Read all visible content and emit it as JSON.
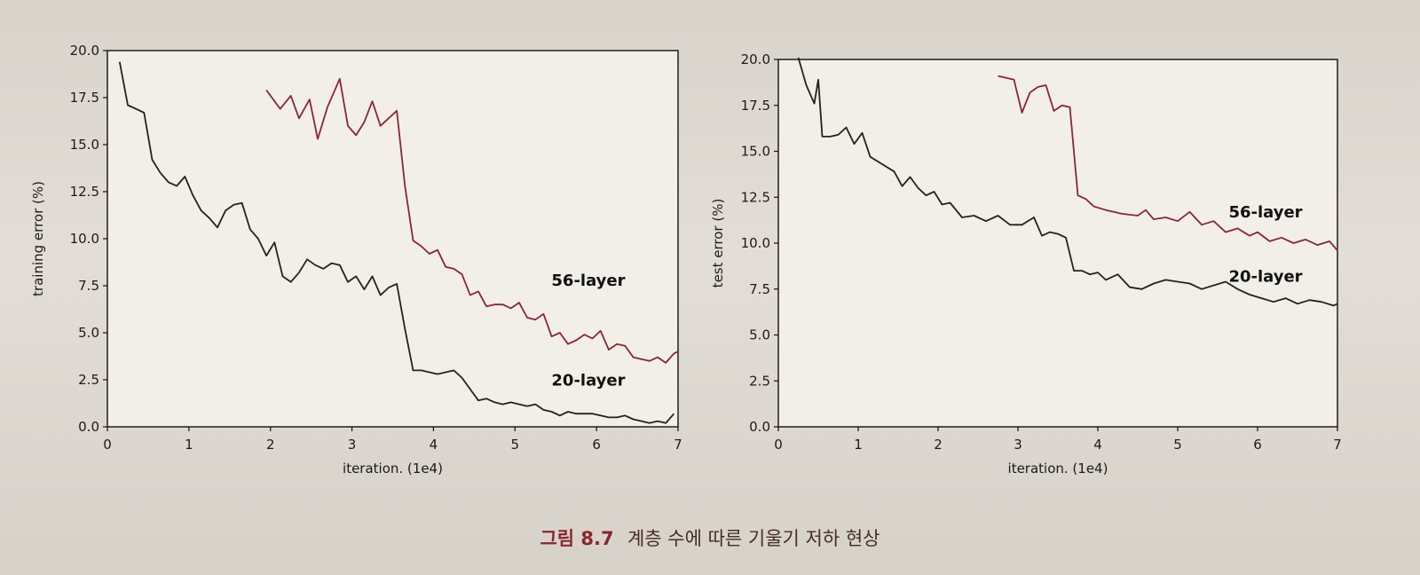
{
  "caption": {
    "figure_number": "그림 8.7",
    "text": "계층 수에 따른 기울기 저하 현상"
  },
  "colors": {
    "layer56": "#8b2630",
    "layer20": "#222222",
    "axis": "#111111"
  },
  "chart_data": [
    {
      "type": "line",
      "xlabel": "iteration. (1e4)",
      "ylabel": "training error (%)",
      "xlim": [
        0,
        7
      ],
      "ylim": [
        0,
        20
      ],
      "xticks": [
        "0",
        "1",
        "2",
        "3",
        "4",
        "5",
        "6",
        "7"
      ],
      "yticks": [
        "0.0",
        "2.5",
        "5.0",
        "7.5",
        "10.0",
        "12.5",
        "15.0",
        "17.5",
        "20.0"
      ],
      "grid": false,
      "series": [
        {
          "name": "56-layer",
          "color": "#8b2630",
          "x": [
            1.95,
            2.12,
            2.25,
            2.35,
            2.48,
            2.58,
            2.7,
            2.85,
            2.95,
            3.05,
            3.15,
            3.25,
            3.35,
            3.45,
            3.55,
            3.65,
            3.75,
            3.85,
            3.95,
            4.05,
            4.15,
            4.25,
            4.35,
            4.45,
            4.55,
            4.65,
            4.75,
            4.85,
            4.95,
            5.05,
            5.15,
            5.25,
            5.35,
            5.45,
            5.55,
            5.65,
            5.75,
            5.85,
            5.95,
            6.05,
            6.15,
            6.25,
            6.35,
            6.45,
            6.55,
            6.65,
            6.75,
            6.85,
            6.95,
            7.0
          ],
          "values": [
            17.9,
            16.9,
            17.6,
            16.4,
            17.4,
            15.3,
            17.0,
            18.5,
            16.0,
            15.5,
            16.2,
            17.3,
            16.0,
            16.4,
            16.8,
            12.8,
            9.9,
            9.6,
            9.2,
            9.4,
            8.5,
            8.4,
            8.1,
            7.0,
            7.2,
            6.4,
            6.5,
            6.5,
            6.3,
            6.6,
            5.8,
            5.7,
            6.0,
            4.8,
            5.0,
            4.4,
            4.6,
            4.9,
            4.7,
            5.1,
            4.1,
            4.4,
            4.3,
            3.7,
            3.6,
            3.5,
            3.7,
            3.4,
            3.9,
            4.0
          ]
        },
        {
          "name": "20-layer",
          "color": "#222222",
          "x": [
            0.15,
            0.25,
            0.35,
            0.45,
            0.55,
            0.65,
            0.75,
            0.85,
            0.95,
            1.05,
            1.15,
            1.25,
            1.35,
            1.45,
            1.55,
            1.65,
            1.75,
            1.85,
            1.95,
            2.05,
            2.15,
            2.25,
            2.35,
            2.45,
            2.55,
            2.65,
            2.75,
            2.85,
            2.95,
            3.05,
            3.15,
            3.25,
            3.35,
            3.45,
            3.55,
            3.65,
            3.75,
            3.85,
            3.95,
            4.05,
            4.15,
            4.25,
            4.35,
            4.45,
            4.55,
            4.65,
            4.75,
            4.85,
            4.95,
            5.05,
            5.15,
            5.25,
            5.35,
            5.45,
            5.55,
            5.65,
            5.75,
            5.85,
            5.95,
            6.05,
            6.15,
            6.25,
            6.35,
            6.45,
            6.55,
            6.65,
            6.75,
            6.85,
            6.95
          ],
          "values": [
            19.4,
            17.1,
            16.9,
            16.7,
            14.2,
            13.5,
            13.0,
            12.8,
            13.3,
            12.3,
            11.5,
            11.1,
            10.6,
            11.5,
            11.8,
            11.9,
            10.5,
            10.0,
            9.1,
            9.8,
            8.0,
            7.7,
            8.2,
            8.9,
            8.6,
            8.4,
            8.7,
            8.6,
            7.7,
            8.0,
            7.3,
            8.0,
            7.0,
            7.4,
            7.6,
            5.2,
            3.0,
            3.0,
            2.9,
            2.8,
            2.9,
            3.0,
            2.6,
            2.0,
            1.4,
            1.5,
            1.3,
            1.2,
            1.3,
            1.2,
            1.1,
            1.2,
            0.9,
            0.8,
            0.6,
            0.8,
            0.7,
            0.7,
            0.7,
            0.6,
            0.5,
            0.5,
            0.6,
            0.4,
            0.3,
            0.2,
            0.3,
            0.2,
            0.7
          ]
        }
      ],
      "annotations": [
        {
          "text": "56-layer",
          "x": 5.9,
          "y": 7.5
        },
        {
          "text": "20-layer",
          "x": 5.9,
          "y": 2.2
        }
      ]
    },
    {
      "type": "line",
      "xlabel": "iteration. (1e4)",
      "ylabel": "test error (%)",
      "xlim": [
        0,
        7
      ],
      "ylim": [
        0,
        20
      ],
      "xticks": [
        "0",
        "1",
        "2",
        "3",
        "4",
        "5",
        "6",
        "7"
      ],
      "yticks": [
        "0.0",
        "2.5",
        "5.0",
        "7.5",
        "10.0",
        "12.5",
        "15.0",
        "17.5",
        "20.0"
      ],
      "grid": false,
      "series": [
        {
          "name": "56-layer",
          "color": "#8b2630",
          "x": [
            2.75,
            2.95,
            3.05,
            3.15,
            3.25,
            3.35,
            3.45,
            3.55,
            3.65,
            3.75,
            3.85,
            3.95,
            4.1,
            4.3,
            4.5,
            4.6,
            4.7,
            4.85,
            5.0,
            5.15,
            5.3,
            5.45,
            5.6,
            5.75,
            5.9,
            6.0,
            6.15,
            6.3,
            6.45,
            6.6,
            6.75,
            6.9,
            7.0
          ],
          "values": [
            19.1,
            18.9,
            17.1,
            18.2,
            18.5,
            18.6,
            17.2,
            17.5,
            17.4,
            12.6,
            12.4,
            12.0,
            11.8,
            11.6,
            11.5,
            11.8,
            11.3,
            11.4,
            11.2,
            11.7,
            11.0,
            11.2,
            10.6,
            10.8,
            10.4,
            10.6,
            10.1,
            10.3,
            10.0,
            10.2,
            9.9,
            10.1,
            9.6
          ]
        },
        {
          "name": "20-layer",
          "color": "#222222",
          "x": [
            0.25,
            0.35,
            0.45,
            0.5,
            0.55,
            0.65,
            0.75,
            0.85,
            0.95,
            1.05,
            1.15,
            1.3,
            1.45,
            1.55,
            1.65,
            1.75,
            1.85,
            1.95,
            2.05,
            2.15,
            2.3,
            2.45,
            2.6,
            2.75,
            2.9,
            3.05,
            3.2,
            3.3,
            3.4,
            3.5,
            3.6,
            3.7,
            3.8,
            3.9,
            4.0,
            4.1,
            4.25,
            4.4,
            4.55,
            4.7,
            4.85,
            5.0,
            5.15,
            5.3,
            5.45,
            5.6,
            5.75,
            5.9,
            6.05,
            6.2,
            6.35,
            6.5,
            6.65,
            6.8,
            6.95,
            7.0
          ],
          "values": [
            20.1,
            18.6,
            17.6,
            18.9,
            15.8,
            15.8,
            15.9,
            16.3,
            15.4,
            16.0,
            14.7,
            14.3,
            13.9,
            13.1,
            13.6,
            13.0,
            12.6,
            12.8,
            12.1,
            12.2,
            11.4,
            11.5,
            11.2,
            11.5,
            11.0,
            11.0,
            11.4,
            10.4,
            10.6,
            10.5,
            10.3,
            8.5,
            8.5,
            8.3,
            8.4,
            8.0,
            8.3,
            7.6,
            7.5,
            7.8,
            8.0,
            7.9,
            7.8,
            7.5,
            7.7,
            7.9,
            7.5,
            7.2,
            7.0,
            6.8,
            7.0,
            6.7,
            6.9,
            6.8,
            6.6,
            6.7
          ]
        }
      ],
      "annotations": [
        {
          "text": "56-layer",
          "x": 6.1,
          "y": 11.4
        },
        {
          "text": "20-layer",
          "x": 6.1,
          "y": 7.9
        }
      ]
    }
  ]
}
